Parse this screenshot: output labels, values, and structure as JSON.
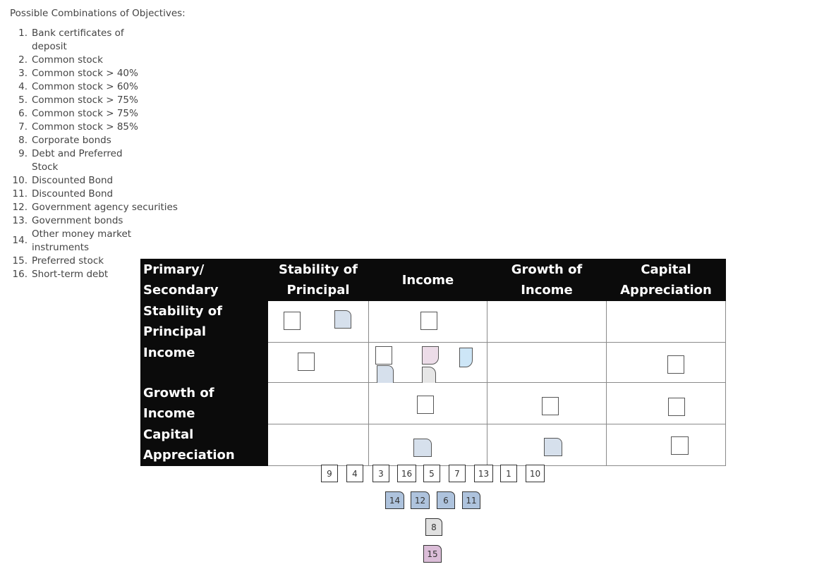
{
  "instructions": "Possible Combinations of Objectives:",
  "options": [
    {
      "num": "1.",
      "text": "Bank certificates of deposit"
    },
    {
      "num": "2.",
      "text": "Common stock"
    },
    {
      "num": "3.",
      "text": "Common stock > 40%"
    },
    {
      "num": "4.",
      "text": "Common stock > 60%"
    },
    {
      "num": "5.",
      "text": "Common stock > 75%"
    },
    {
      "num": "6.",
      "text": "Common stock > 75%"
    },
    {
      "num": "7.",
      "text": "Common stock > 85%"
    },
    {
      "num": "8.",
      "text": "Corporate bonds"
    },
    {
      "num": "9.",
      "text": "Debt and Preferred Stock"
    },
    {
      "num": "10.",
      "text": "Discounted Bond"
    },
    {
      "num": "11.",
      "text": "Discounted Bond"
    },
    {
      "num": "12.",
      "text": "Government agency securities"
    },
    {
      "num": "13.",
      "text": "Government bonds"
    },
    {
      "num": "14.",
      "text": "Other money market instruments"
    },
    {
      "num": "15.",
      "text": "Preferred stock"
    },
    {
      "num": "16.",
      "text": "Short-term debt"
    }
  ],
  "grid": {
    "corner": "Primary/ Secondary",
    "columns": [
      "Stability of Principal",
      "Income",
      "Growth of Income",
      "Capital Appreciation"
    ],
    "rows": [
      "Stability of Principal",
      "Income",
      "Growth of Income",
      "Capital Appreciation"
    ]
  },
  "chips": {
    "row1": [
      "9",
      "4",
      "3",
      "16",
      "5",
      "7",
      "13",
      "1",
      "10"
    ],
    "row2": [
      "14",
      "12",
      "6",
      "11"
    ],
    "row3": [
      "8"
    ],
    "row4": [
      "15"
    ]
  },
  "colors": {
    "header_bg": "#0b0b0b",
    "chip_blue": "#aec3dd",
    "chip_grey": "#e0e0e0",
    "chip_pink": "#dbbdd8"
  }
}
